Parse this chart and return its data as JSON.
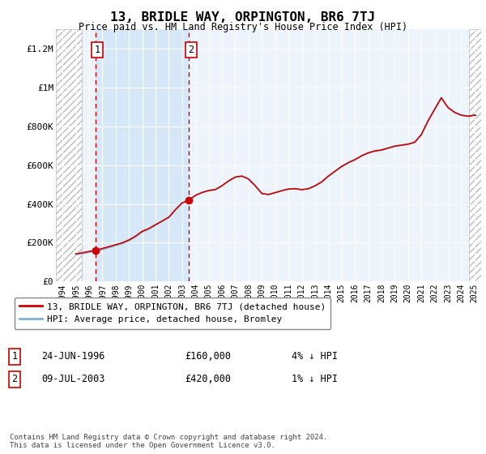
{
  "title": "13, BRIDLE WAY, ORPINGTON, BR6 7TJ",
  "subtitle": "Price paid vs. HM Land Registry's House Price Index (HPI)",
  "legend_line1": "13, BRIDLE WAY, ORPINGTON, BR6 7TJ (detached house)",
  "legend_line2": "HPI: Average price, detached house, Bromley",
  "sale1_year": 1996.47,
  "sale1_price": 160000,
  "sale1_label": "1",
  "sale1_date": "24-JUN-1996",
  "sale1_display": "£160,000",
  "sale1_hpi": "4% ↓ HPI",
  "sale2_year": 2003.52,
  "sale2_price": 420000,
  "sale2_label": "2",
  "sale2_date": "09-JUL-2003",
  "sale2_display": "£420,000",
  "sale2_hpi": "1% ↓ HPI",
  "hpi_color": "#7fb3d3",
  "price_color": "#cc0000",
  "dashed_color": "#cc0000",
  "plot_bg": "#eef4fb",
  "highlight_bg": "#d6e8f7",
  "hatch_bg": "#ffffff",
  "ylim_min": 0,
  "ylim_max": 1300000,
  "xmin": 1993.5,
  "xmax": 2025.5,
  "hatch_left_end": 1995.42,
  "hatch_right_start": 2024.58,
  "footer": "Contains HM Land Registry data © Crown copyright and database right 2024.\nThis data is licensed under the Open Government Licence v3.0.",
  "yticks": [
    0,
    200000,
    400000,
    600000,
    800000,
    1000000,
    1200000
  ],
  "ytick_labels": [
    "£0",
    "£200K",
    "£400K",
    "£600K",
    "£800K",
    "£1M",
    "£1.2M"
  ],
  "xticks": [
    1994,
    1995,
    1996,
    1997,
    1998,
    1999,
    2000,
    2001,
    2002,
    2003,
    2004,
    2005,
    2006,
    2007,
    2008,
    2009,
    2010,
    2011,
    2012,
    2013,
    2014,
    2015,
    2016,
    2017,
    2018,
    2019,
    2020,
    2021,
    2022,
    2023,
    2024,
    2025
  ]
}
